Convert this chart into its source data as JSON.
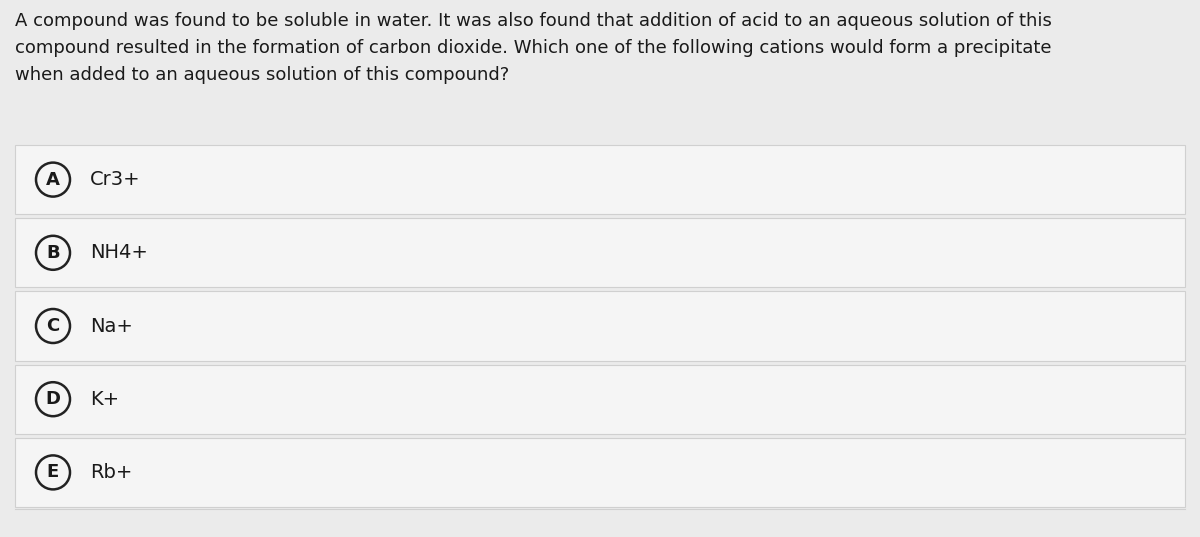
{
  "question_text": "A compound was found to be soluble in water. It was also found that addition of acid to an aqueous solution of this\ncompound resulted in the formation of carbon dioxide. Which one of the following cations would form a precipitate\nwhen added to an aqueous solution of this compound?",
  "options": [
    {
      "label": "A",
      "text": "Cr3+"
    },
    {
      "label": "B",
      "text": "NH4+"
    },
    {
      "label": "C",
      "text": "Na+"
    },
    {
      "label": "D",
      "text": "K+"
    },
    {
      "label": "E",
      "text": "Rb+"
    }
  ],
  "bg_color": "#ebebeb",
  "option_bg_color": "#f5f5f5",
  "option_line_color": "#d0d0d0",
  "text_color": "#1a1a1a",
  "circle_edge_color": "#222222",
  "circle_face_color": "#f5f5f5",
  "question_fontsize": 13.0,
  "option_fontsize": 14.0,
  "label_fontsize": 13.0,
  "fig_width": 12.0,
  "fig_height": 5.37,
  "dpi": 100
}
